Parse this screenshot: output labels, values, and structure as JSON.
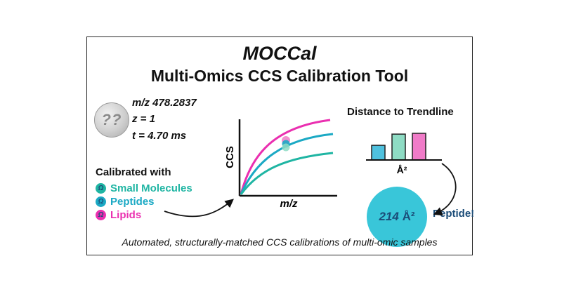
{
  "title": "MOCCal",
  "subtitle": "Multi-Omics CCS Calibration Tool",
  "unknown_badge": "??",
  "ion": {
    "mz": "m/z 478.2837",
    "z": "z = 1",
    "t": "t = 4.70 ms"
  },
  "calibration": {
    "heading": "Calibrated with",
    "symbol": "Ω",
    "items": [
      {
        "label": "Small Molecules",
        "color": "#1fb5a3"
      },
      {
        "label": "Peptides",
        "color": "#1ba9c4"
      },
      {
        "label": "Lipids",
        "color": "#ea2fb0"
      }
    ]
  },
  "plot": {
    "ylabel": "CCS",
    "xlabel": "m/z"
  },
  "distance": {
    "title": "Distance to Trendline",
    "axis_label": "Å²",
    "bars": [
      {
        "value": 0.55,
        "color": "#4fc1de"
      },
      {
        "value": 0.97,
        "color": "#8edcc4"
      },
      {
        "value": 1.0,
        "color": "#f07bc8"
      }
    ]
  },
  "result": {
    "value": "214",
    "unit": "Å²",
    "label": "Peptide!"
  },
  "footer": "Automated, structurally-matched CCS calibrations of multi-omic samples"
}
